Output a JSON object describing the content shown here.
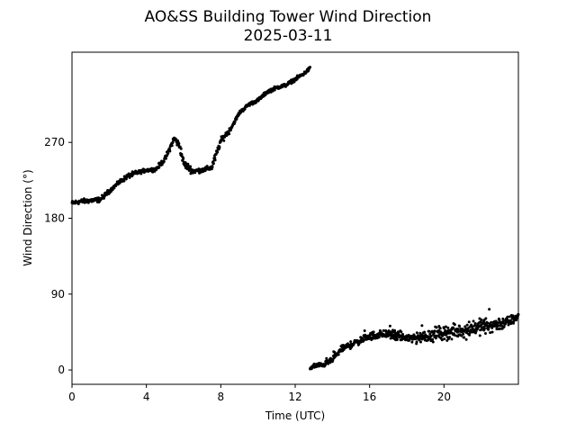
{
  "chart_data": {
    "type": "scatter",
    "title": "AO&SS Building Tower Wind Direction",
    "subtitle": "2025-03-11",
    "xlabel": "Time (UTC)",
    "ylabel": "Wind Direction (°)",
    "xlim": [
      0,
      24
    ],
    "ylim": [
      -17,
      377
    ],
    "xticks": [
      0,
      4,
      8,
      12,
      16,
      20
    ],
    "yticks": [
      0,
      90,
      180,
      270
    ],
    "grid": false,
    "marker_color": "#000000",
    "series": [
      {
        "anchors": [
          [
            0.0,
            198
          ],
          [
            0.5,
            200
          ],
          [
            1.0,
            201
          ],
          [
            1.5,
            202
          ],
          [
            2.0,
            212
          ],
          [
            2.5,
            222
          ],
          [
            3.0,
            230
          ],
          [
            3.5,
            234
          ],
          [
            4.0,
            237
          ],
          [
            4.5,
            238
          ],
          [
            5.0,
            250
          ],
          [
            5.5,
            275
          ],
          [
            5.8,
            265
          ],
          [
            6.0,
            245
          ],
          [
            6.5,
            236
          ],
          [
            7.0,
            237
          ],
          [
            7.5,
            240
          ],
          [
            7.8,
            258
          ],
          [
            8.0,
            272
          ],
          [
            8.5,
            285
          ],
          [
            9.0,
            305
          ],
          [
            9.5,
            315
          ],
          [
            10.0,
            320
          ],
          [
            10.5,
            330
          ],
          [
            11.0,
            335
          ],
          [
            11.5,
            338
          ],
          [
            12.0,
            345
          ],
          [
            12.5,
            352
          ],
          [
            12.8,
            358
          ]
        ],
        "spread": [
          4,
          4,
          4,
          4,
          3,
          4,
          4,
          3,
          3,
          4,
          5,
          6,
          8,
          6,
          4,
          4,
          7,
          6,
          5,
          3,
          3,
          3,
          3,
          3,
          3,
          3,
          3,
          3,
          3
        ]
      },
      {
        "anchors": [
          [
            12.8,
            2
          ],
          [
            13.0,
            5
          ],
          [
            13.5,
            6
          ],
          [
            14.0,
            12
          ],
          [
            14.5,
            25
          ],
          [
            15.0,
            30
          ],
          [
            15.5,
            35
          ],
          [
            16.0,
            40
          ],
          [
            16.5,
            42
          ],
          [
            17.0,
            43
          ],
          [
            17.5,
            40
          ],
          [
            18.0,
            38
          ],
          [
            18.5,
            38
          ],
          [
            19.0,
            40
          ],
          [
            19.5,
            43
          ],
          [
            20.0,
            44
          ],
          [
            20.5,
            45
          ],
          [
            21.0,
            47
          ],
          [
            21.5,
            50
          ],
          [
            22.0,
            52
          ],
          [
            22.5,
            53
          ],
          [
            23.0,
            55
          ],
          [
            23.5,
            57
          ],
          [
            24.0,
            64
          ]
        ],
        "spread": [
          3,
          4,
          4,
          5,
          6,
          6,
          6,
          7,
          7,
          8,
          8,
          9,
          10,
          11,
          11,
          12,
          12,
          13,
          13,
          13,
          12,
          11,
          9,
          8
        ]
      }
    ]
  }
}
